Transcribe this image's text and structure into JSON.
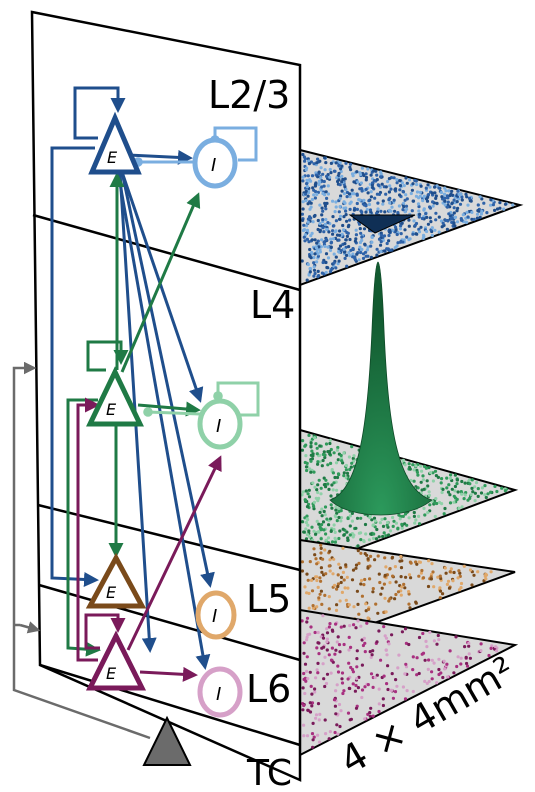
{
  "layers": [
    {
      "key": "l23",
      "label": "L2/3",
      "e_color": "#1f4e8c",
      "i_color": "#7aaee0"
    },
    {
      "key": "l4",
      "label": "L4",
      "e_color": "#1f7a45",
      "i_color": "#8fd1a8"
    },
    {
      "key": "l5",
      "label": "L5",
      "e_color": "#7a4a1a",
      "i_color": "#e0a86a"
    },
    {
      "key": "l6",
      "label": "L6",
      "e_color": "#7a1a5a",
      "i_color": "#d6a0c8"
    }
  ],
  "thalamus": {
    "label": "TC",
    "color": "#666666"
  },
  "cell_labels": {
    "excitatory": "E",
    "inhibitory": "I"
  },
  "area_label": "4 × 4mm²",
  "colors": {
    "sheet_fill": "#d9d9d9",
    "l23_dots": [
      "#1f4e8c",
      "#7aaee0",
      "#2e62a8"
    ],
    "l4_dots": [
      "#1f7a45",
      "#8fd1a8",
      "#2f9a5a"
    ],
    "l5_dots": [
      "#7a4a1a",
      "#e0a86a",
      "#b07030"
    ],
    "l6_dots": [
      "#7a1a5a",
      "#d6a0c8",
      "#a83080"
    ],
    "peak": "#1f7a45",
    "grey_arrow": "#6b6b6b"
  }
}
